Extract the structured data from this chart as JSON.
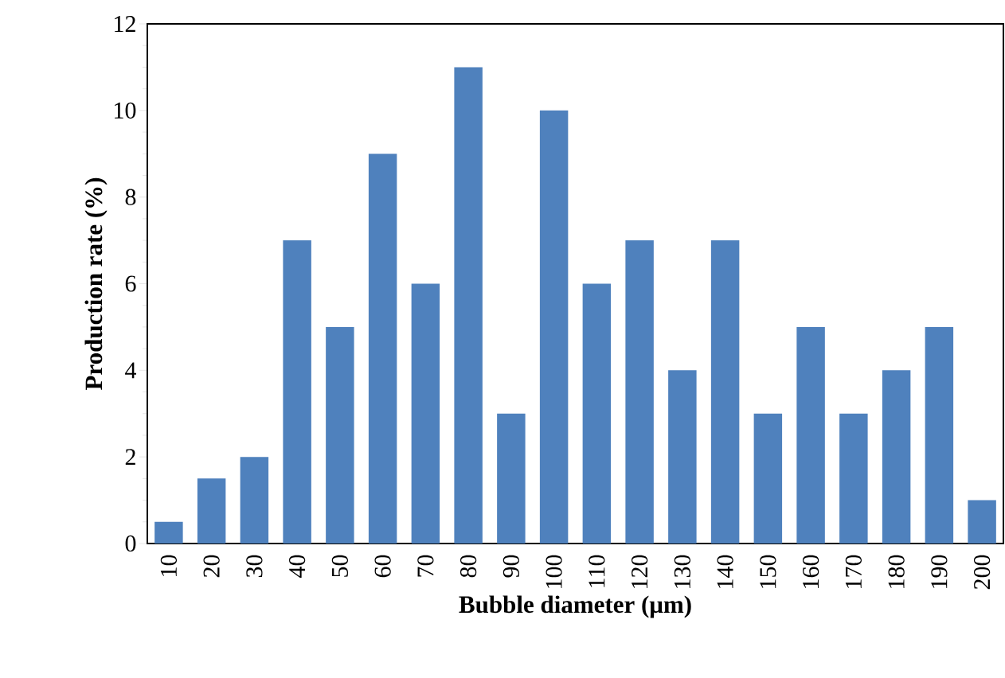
{
  "chart_data": {
    "type": "bar",
    "xlabel": "Bubble diameter (μm)",
    "ylabel": "Production rate (%)",
    "categories": [
      "10",
      "20",
      "30",
      "40",
      "50",
      "60",
      "70",
      "80",
      "90",
      "100",
      "110",
      "120",
      "130",
      "140",
      "150",
      "160",
      "170",
      "180",
      "190",
      "200"
    ],
    "values": [
      0.5,
      1.5,
      2,
      7,
      5,
      9,
      6,
      11,
      3,
      10,
      6,
      7,
      4,
      7,
      3,
      5,
      3,
      4,
      5,
      1
    ],
    "color": "#4f81bd",
    "ylim": [
      0,
      12
    ],
    "yticks": [
      0,
      2,
      4,
      6,
      8,
      10,
      12
    ]
  }
}
